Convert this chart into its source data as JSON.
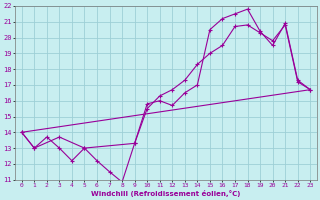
{
  "xlabel": "Windchill (Refroidissement éolien,°C)",
  "xlim": [
    -0.5,
    23.5
  ],
  "ylim": [
    11,
    22
  ],
  "xticks": [
    0,
    1,
    2,
    3,
    4,
    5,
    6,
    7,
    8,
    9,
    10,
    11,
    12,
    13,
    14,
    15,
    16,
    17,
    18,
    19,
    20,
    21,
    22,
    23
  ],
  "yticks": [
    11,
    12,
    13,
    14,
    15,
    16,
    17,
    18,
    19,
    20,
    21,
    22
  ],
  "bg_color": "#c8eef0",
  "grid_color": "#9dcfd6",
  "line_color": "#990099",
  "line1_x": [
    0,
    1,
    2,
    3,
    4,
    5,
    6,
    7,
    8,
    9,
    10,
    11,
    12,
    13,
    14,
    15,
    16,
    17,
    18,
    19,
    20,
    21,
    22,
    23
  ],
  "line1_y": [
    14.0,
    13.0,
    13.7,
    13.0,
    12.2,
    13.0,
    12.2,
    11.5,
    10.85,
    13.3,
    15.8,
    16.0,
    15.7,
    16.5,
    17.0,
    20.5,
    21.2,
    21.5,
    21.8,
    20.4,
    19.5,
    20.9,
    17.3,
    16.7
  ],
  "line2_x": [
    0,
    1,
    3,
    5,
    9,
    10,
    11,
    12,
    13,
    14,
    15,
    16,
    17,
    18,
    19,
    20,
    21,
    22,
    23
  ],
  "line2_y": [
    14.0,
    13.0,
    13.7,
    13.0,
    13.3,
    15.5,
    16.3,
    16.7,
    17.3,
    18.3,
    19.0,
    19.5,
    20.7,
    20.8,
    20.3,
    19.8,
    20.8,
    17.2,
    16.7
  ],
  "line3_x": [
    0,
    23
  ],
  "line3_y": [
    14.0,
    16.7
  ]
}
